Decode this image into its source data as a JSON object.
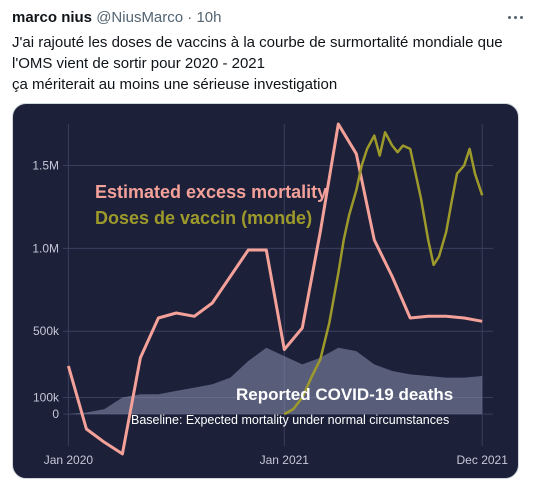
{
  "tweet": {
    "author_name": "marco nius",
    "handle": "@NiusMarco",
    "separator": "·",
    "time": "10h",
    "text_lines": [
      "J'ai rajouté les doses de vaccins à la courbe de surmortalité mondiale que",
      "l'OMS vient de sortir pour 2020 - 2021",
      "ça mériterait au moins une sérieuse investigation"
    ],
    "more_icon": "more-icon"
  },
  "chart_data": {
    "type": "line",
    "y_tick_labels": [
      "1.5M",
      "1.0M",
      "500k",
      "100k",
      "0"
    ],
    "y_ticks": [
      1500000,
      1000000,
      500000,
      100000,
      0
    ],
    "ylim": [
      -120000,
      1750000
    ],
    "x_tick_labels": [
      "Jan 2020",
      "Jan 2021",
      "Dec 2021"
    ],
    "x_ticks": [
      0,
      12,
      23
    ],
    "xlim": [
      -0.3,
      23.6
    ],
    "colors": {
      "background": "#1c2039",
      "excess": "#f4a19a",
      "vaccine": "#9d9a2b",
      "covid_area": "#8a90b0",
      "text": "#ffffff",
      "axis_text": "#c4c8d8",
      "grid": "#3a3f5e"
    },
    "annotations": {
      "excess_label": "Estimated excess mortality",
      "vaccine_label": "Doses de vaccin (monde)",
      "covid_label": "Reported COVID-19 deaths",
      "baseline_label": "Baseline: Expected mortality under normal circumstances"
    },
    "series": [
      {
        "key": "excess",
        "x": [
          0,
          1,
          2,
          3,
          4,
          5,
          6,
          7,
          8,
          9,
          10,
          11,
          12,
          13,
          14,
          15,
          16,
          17,
          18,
          19,
          20,
          21,
          22,
          23
        ],
        "values": [
          290000,
          -90000,
          -170000,
          -240000,
          340000,
          580000,
          610000,
          590000,
          670000,
          830000,
          990000,
          990000,
          390000,
          520000,
          1100000,
          1750000,
          1570000,
          1050000,
          830000,
          580000,
          590000,
          590000,
          580000,
          560000
        ]
      },
      {
        "key": "vaccine",
        "x": [
          12.0,
          12.5,
          13.0,
          13.5,
          14.0,
          14.5,
          15.0,
          15.3,
          15.6,
          16.0,
          16.3,
          16.6,
          17.0,
          17.3,
          17.6,
          18.0,
          18.3,
          18.6,
          19.0,
          19.3,
          19.6,
          20.0,
          20.3,
          20.6,
          21.0,
          21.3,
          21.6,
          22.0,
          22.3,
          22.6,
          23.0
        ],
        "values": [
          0,
          30000,
          100000,
          220000,
          330000,
          550000,
          850000,
          1050000,
          1200000,
          1350000,
          1500000,
          1600000,
          1680000,
          1560000,
          1700000,
          1620000,
          1580000,
          1620000,
          1600000,
          1450000,
          1300000,
          1050000,
          900000,
          950000,
          1100000,
          1280000,
          1450000,
          1500000,
          1600000,
          1450000,
          1320000
        ]
      },
      {
        "key": "covid",
        "x": [
          0,
          1,
          2,
          3,
          4,
          5,
          6,
          7,
          8,
          9,
          10,
          11,
          12,
          13,
          14,
          15,
          16,
          17,
          18,
          19,
          20,
          21,
          22,
          23
        ],
        "values": [
          0,
          10000,
          30000,
          100000,
          120000,
          120000,
          140000,
          160000,
          180000,
          220000,
          320000,
          400000,
          350000,
          300000,
          340000,
          400000,
          380000,
          300000,
          260000,
          240000,
          230000,
          220000,
          220000,
          230000
        ]
      }
    ]
  }
}
